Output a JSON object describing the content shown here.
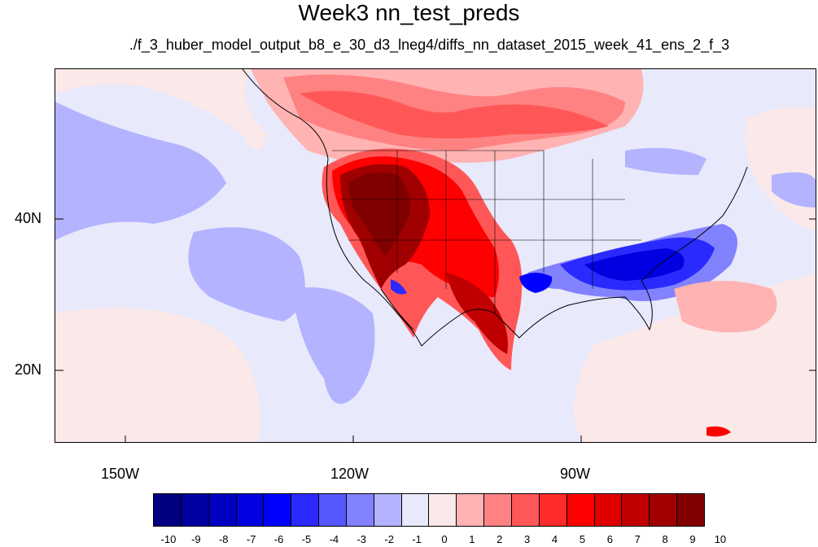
{
  "title": "Week3 nn_test_preds",
  "subtitle": "./f_3_huber_model_output_b8_e_30_d3_lneg4/diffs_nn_dataset_2015_week_41_ens_2_f_3",
  "axes": {
    "lat_labels": [
      "40N",
      "20N"
    ],
    "lon_labels": [
      "150W",
      "120W",
      "90W"
    ]
  },
  "colorbar": {
    "labels": [
      "-10",
      "-9",
      "-8",
      "-7",
      "-6",
      "-5",
      "-4",
      "-3",
      "-2",
      "-1",
      "0",
      "1",
      "2",
      "3",
      "4",
      "5",
      "6",
      "7",
      "8",
      "9",
      "10"
    ],
    "colors": [
      "#000080",
      "#0000a0",
      "#0000c0",
      "#0000e0",
      "#0000ff",
      "#2a2aff",
      "#5757ff",
      "#8282ff",
      "#b3b3ff",
      "#e8e9fb",
      "#fbe8e8",
      "#ffb3b3",
      "#ff8282",
      "#ff5757",
      "#ff2a2a",
      "#ff0000",
      "#e00000",
      "#c00000",
      "#a00000",
      "#800000"
    ]
  }
}
